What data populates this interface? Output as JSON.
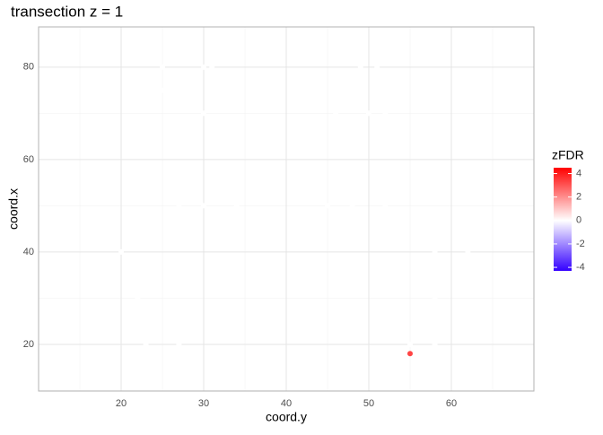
{
  "chart_data": {
    "type": "scatter",
    "title": "transection z = 1",
    "x_label": "coord.y",
    "y_label": "coord.x",
    "x": [
      25,
      30,
      31,
      49,
      51,
      25,
      30,
      46,
      50,
      52,
      27,
      30,
      34,
      45,
      48,
      52,
      20,
      58,
      62,
      22,
      58,
      23,
      27,
      55,
      58,
      55
    ],
    "y": [
      80,
      80,
      80,
      80,
      80,
      75,
      70,
      70,
      70,
      70,
      50,
      50,
      50,
      50,
      50,
      50,
      40,
      40,
      40,
      30,
      30,
      20,
      20,
      20,
      20,
      18
    ],
    "values": [
      0,
      0,
      0,
      0,
      0,
      0,
      0,
      0,
      0,
      0,
      0,
      0,
      0,
      0,
      0,
      0,
      0,
      0,
      0,
      0,
      0,
      0,
      0,
      0,
      0,
      3.3
    ],
    "xlim": [
      10,
      70
    ],
    "xticks": [
      20,
      30,
      40,
      50,
      60
    ],
    "ylim": [
      9.9,
      88.7
    ],
    "yticks": [
      20,
      40,
      60,
      80
    ],
    "grid": true,
    "legend": {
      "title": "zFDR",
      "limits": [
        -4.3,
        4.5
      ],
      "ticks": [
        4,
        2,
        0,
        -2,
        -4
      ],
      "colors": {
        "low": "#3300ff",
        "mid": "#ffffff",
        "high": "#ff0000"
      }
    }
  }
}
